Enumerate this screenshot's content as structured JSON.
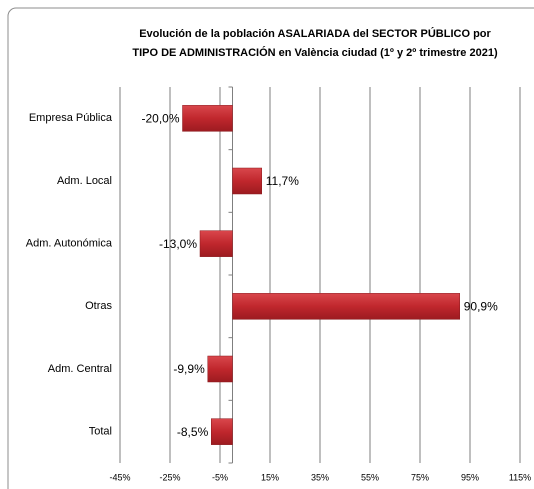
{
  "chart_data": {
    "type": "bar",
    "orientation": "horizontal",
    "title": [
      "Evolución de la población ASALARIADA del SECTOR PÚBLICO por",
      "TIPO DE ADMINISTRACIÓN en València ciudad (1º y 2º trimestre 2021)"
    ],
    "categories": [
      "Empresa Pública",
      "Adm. Local",
      "Adm. Autonómica",
      "Otras",
      "Adm. Central",
      "Total"
    ],
    "values": [
      -20.0,
      11.7,
      -13.0,
      90.9,
      -9.9,
      -8.5
    ],
    "value_labels": [
      "-20,0%",
      "11,7%",
      "-13,0%",
      "90,9%",
      "-9,9%",
      "-8,5%"
    ],
    "color": "#c0272d",
    "xlim": [
      -45,
      115
    ],
    "xticks": [
      {
        "value": -45,
        "label": "-45%"
      },
      {
        "value": -25,
        "label": "-25%"
      },
      {
        "value": -5,
        "label": "-5%"
      },
      {
        "value": 15,
        "label": "15%"
      },
      {
        "value": 35,
        "label": "35%"
      },
      {
        "value": 55,
        "label": "55%"
      },
      {
        "value": 75,
        "label": "75%"
      },
      {
        "value": 95,
        "label": "95%"
      },
      {
        "value": 115,
        "label": "115%"
      }
    ],
    "grid": true
  }
}
